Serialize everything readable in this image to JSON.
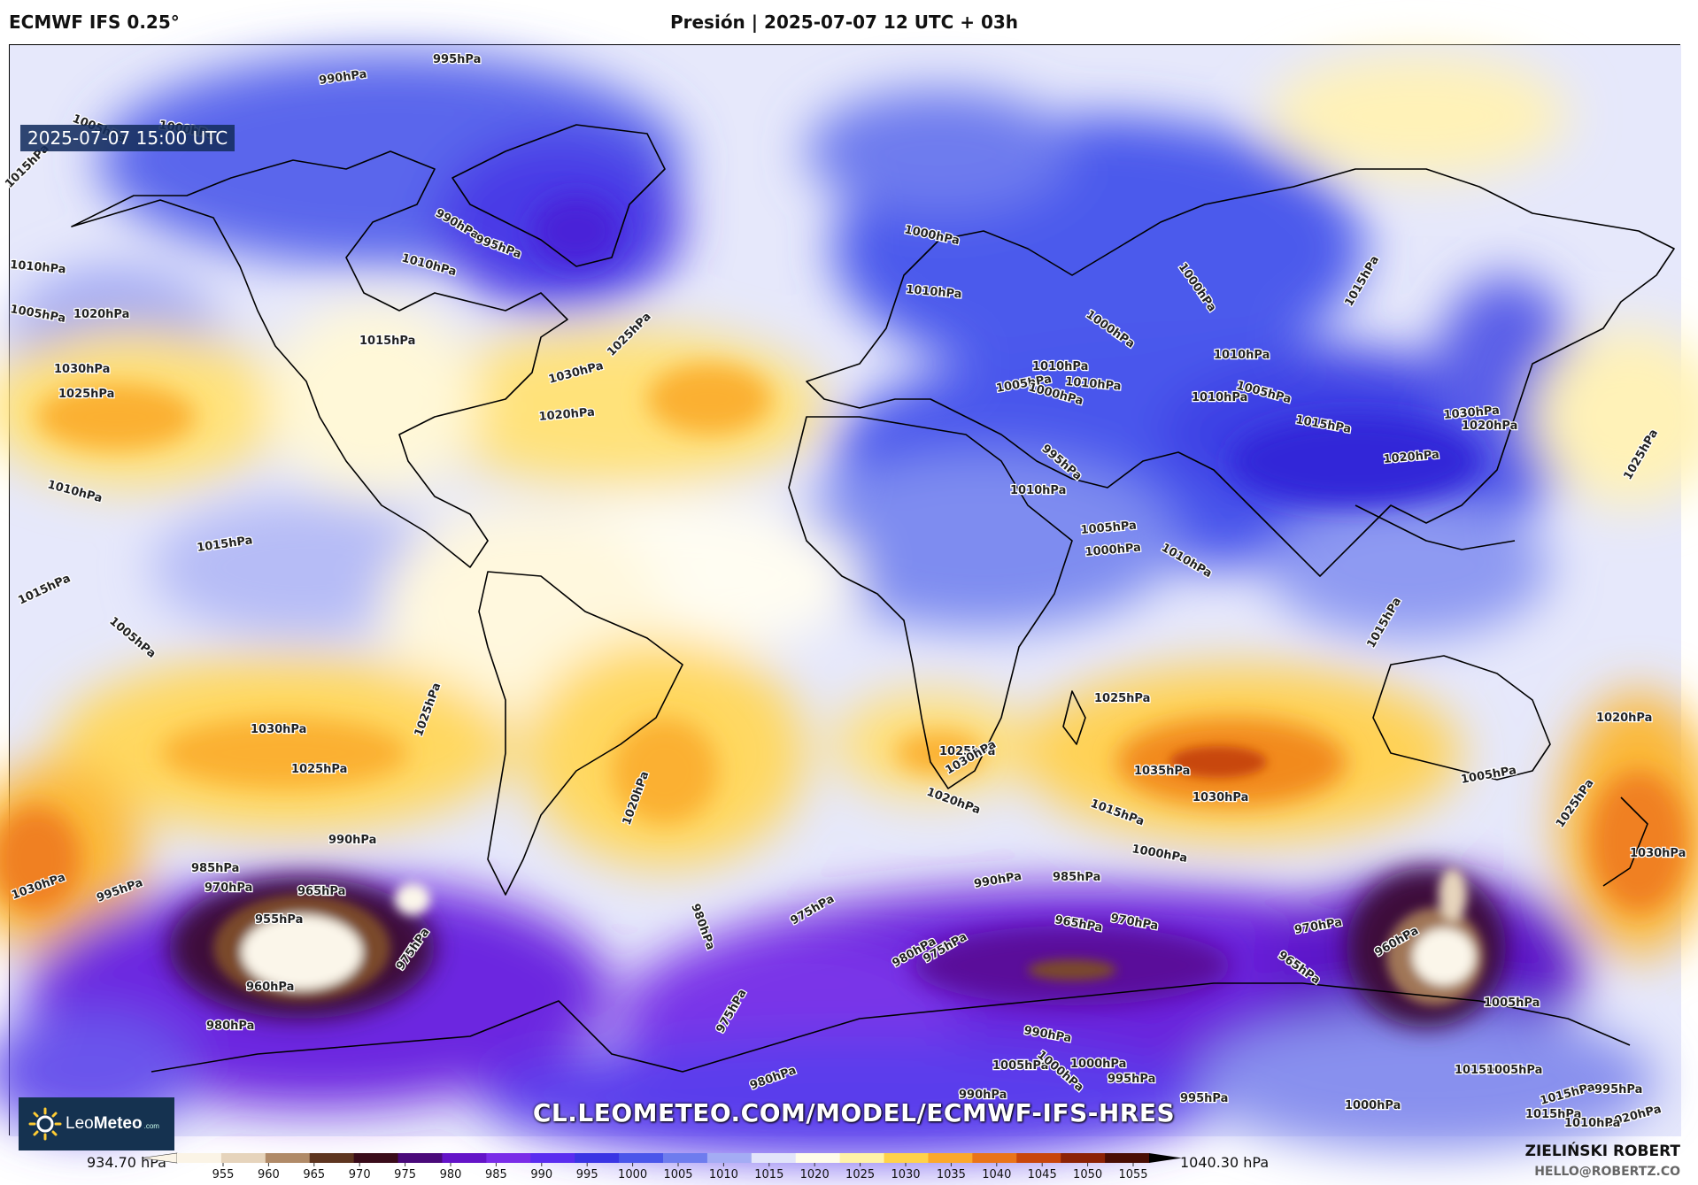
{
  "header": {
    "model": "ECMWF IFS 0.25°",
    "title": "Presión | 2025-07-07 12 UTC + 03h"
  },
  "map": {
    "valid_time": "2025-07-07 15:00 UTC",
    "watermark": "CL.LEOMETEO.COM/MODEL/ECMWF-IFS-HRES",
    "logo": {
      "name_regular": "Leo",
      "name_bold": "Meteo",
      "suffix": ".com"
    },
    "isobar_labels": [
      {
        "text": "995hPa"
      },
      {
        "text": "990hPa"
      },
      {
        "text": "1005hPa"
      },
      {
        "text": "1000hPa"
      },
      {
        "text": "1015hPa"
      },
      {
        "text": "990hPa"
      },
      {
        "text": "995hPa"
      },
      {
        "text": "1010hPa"
      },
      {
        "text": "1010hPa"
      },
      {
        "text": "1005hPa"
      },
      {
        "text": "1020hPa"
      },
      {
        "text": "1030hPa"
      },
      {
        "text": "1025hPa"
      },
      {
        "text": "1015hPa"
      },
      {
        "text": "1030hPa"
      },
      {
        "text": "1025hPa"
      },
      {
        "text": "1020hPa"
      },
      {
        "text": "1010hPa"
      },
      {
        "text": "1015hPa"
      },
      {
        "text": "1015hPa"
      },
      {
        "text": "1005hPa"
      },
      {
        "text": "1010hPa"
      },
      {
        "text": "1010hPa"
      },
      {
        "text": "1005hPa"
      },
      {
        "text": "1000hPa"
      },
      {
        "text": "1000hPa"
      },
      {
        "text": "1000hPa"
      },
      {
        "text": "1010hPa"
      },
      {
        "text": "1010hPa"
      },
      {
        "text": "1005hPa"
      },
      {
        "text": "1000hPa"
      },
      {
        "text": "1010hPa"
      },
      {
        "text": "1015hPa"
      },
      {
        "text": "995hPa"
      },
      {
        "text": "1010hPa"
      },
      {
        "text": "1000hPa"
      },
      {
        "text": "1005hPa"
      },
      {
        "text": "1020hPa"
      },
      {
        "text": "1015hPa"
      },
      {
        "text": "1020hPa"
      },
      {
        "text": "1015hPa"
      },
      {
        "text": "1030hPa"
      },
      {
        "text": "1025hPa"
      },
      {
        "text": "1010hPa"
      },
      {
        "text": "985hPa"
      },
      {
        "text": "990hPa"
      },
      {
        "text": "970hPa"
      },
      {
        "text": "965hPa"
      },
      {
        "text": "955hPa"
      },
      {
        "text": "975hPa"
      },
      {
        "text": "960hPa"
      },
      {
        "text": "980hPa"
      },
      {
        "text": "995hPa"
      },
      {
        "text": "1025hPa"
      },
      {
        "text": "1030hPa"
      },
      {
        "text": "1025hPa"
      },
      {
        "text": "1030hPa"
      },
      {
        "text": "1020hPa"
      },
      {
        "text": "980hPa"
      },
      {
        "text": "975hPa"
      },
      {
        "text": "975hPa"
      },
      {
        "text": "1025hPa"
      },
      {
        "text": "1030hPa"
      },
      {
        "text": "1020hPa"
      },
      {
        "text": "1025hPa"
      },
      {
        "text": "1035hPa"
      },
      {
        "text": "1030hPa"
      },
      {
        "text": "1015hPa"
      },
      {
        "text": "1000hPa"
      },
      {
        "text": "990hPa"
      },
      {
        "text": "985hPa"
      },
      {
        "text": "965hPa"
      },
      {
        "text": "970hPa"
      },
      {
        "text": "980hPa"
      },
      {
        "text": "975hPa"
      },
      {
        "text": "970hPa"
      },
      {
        "text": "965hPa"
      },
      {
        "text": "960hPa"
      },
      {
        "text": "1005hPa"
      },
      {
        "text": "1005hPa"
      },
      {
        "text": "1020hPa"
      },
      {
        "text": "1025hPa"
      },
      {
        "text": "1030hPa"
      },
      {
        "text": "1005hPa"
      },
      {
        "text": "1015hPa"
      },
      {
        "text": "1005hPa"
      },
      {
        "text": "1000hPa"
      },
      {
        "text": "980hPa"
      },
      {
        "text": "1000hPa"
      },
      {
        "text": "1000hPa"
      },
      {
        "text": "995hPa"
      },
      {
        "text": "990hPa"
      },
      {
        "text": "990hPa"
      },
      {
        "text": "995hPa"
      },
      {
        "text": "995hPa"
      },
      {
        "text": "1015hPa"
      },
      {
        "text": "1020hPa"
      },
      {
        "text": "1015hPa"
      },
      {
        "text": "1010hPa"
      }
    ]
  },
  "colorbar": {
    "min_label": "934.70 hPa",
    "max_label": "1040.30 hPa",
    "ticks": [
      "955",
      "960",
      "965",
      "970",
      "975",
      "980",
      "985",
      "990",
      "995",
      "1000",
      "1005",
      "1010",
      "1015",
      "1020",
      "1025",
      "1030",
      "1035",
      "1040",
      "1045",
      "1050",
      "1055"
    ],
    "colors": [
      "#fbf4e6",
      "#e6d4bc",
      "#b08a68",
      "#5e3520",
      "#3a0c1a",
      "#4a0a7a",
      "#6414c8",
      "#7a2ce8",
      "#5a2cf0",
      "#3a34e4",
      "#4a56ea",
      "#6e7cee",
      "#a4acf4",
      "#e2e4fa",
      "#fffcea",
      "#fff2a8",
      "#ffd24a",
      "#fba82c",
      "#e9741a",
      "#c8460c",
      "#8c2206",
      "#4a0e04"
    ]
  },
  "author": {
    "name": "ZIELIŃSKI ROBERT",
    "email": "HELLO@ROBERTZ.CO"
  }
}
